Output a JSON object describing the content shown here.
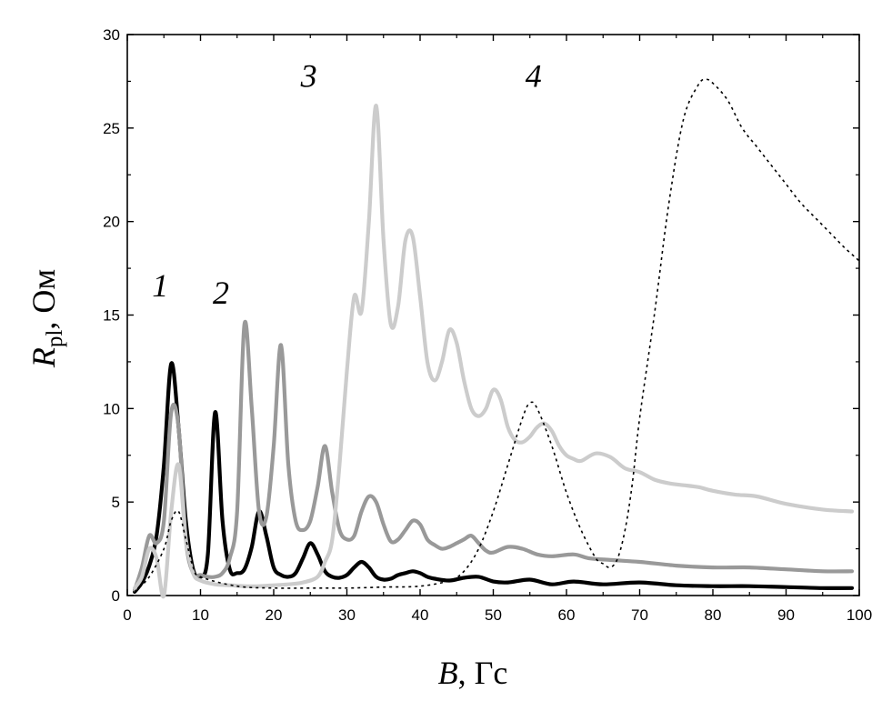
{
  "chart_data": {
    "type": "line",
    "xlabel": {
      "var": "B",
      "unit": ", Гс"
    },
    "ylabel": {
      "var": "R",
      "sub": "pl",
      "unit": ", Ом"
    },
    "xlim": [
      0,
      100
    ],
    "ylim": [
      0,
      30
    ],
    "xticks": [
      0,
      10,
      20,
      30,
      40,
      50,
      60,
      70,
      80,
      90,
      100
    ],
    "yticks": [
      0,
      5,
      10,
      15,
      20,
      25,
      30
    ],
    "grid": false,
    "legend": "none",
    "series": [
      {
        "label": "1",
        "label_at": [
          4.5,
          16
        ],
        "color": "#000000",
        "style": "solid",
        "x": [
          1,
          2,
          3,
          4,
          5,
          6,
          7,
          8,
          9,
          10,
          11,
          12,
          13,
          14,
          15,
          16,
          17,
          18,
          19,
          20,
          21,
          22,
          23,
          24,
          25,
          26,
          27,
          28,
          29,
          30,
          31,
          32,
          33,
          34,
          35,
          36,
          37,
          38,
          39,
          40,
          41,
          42,
          44,
          46,
          48,
          50,
          52,
          55,
          58,
          61,
          65,
          70,
          75,
          80,
          85,
          90,
          95,
          99
        ],
        "y": [
          0.2,
          0.7,
          1.6,
          3.2,
          7.0,
          12.4,
          9.0,
          4.0,
          1.4,
          1.0,
          2.2,
          9.8,
          4.0,
          1.4,
          1.2,
          1.4,
          2.6,
          4.5,
          3.2,
          1.5,
          1.1,
          1.0,
          1.2,
          2.0,
          2.8,
          2.2,
          1.3,
          1.0,
          0.95,
          1.1,
          1.5,
          1.8,
          1.5,
          1.0,
          0.85,
          0.9,
          1.1,
          1.2,
          1.3,
          1.2,
          1.0,
          0.9,
          0.8,
          0.95,
          1.0,
          0.75,
          0.7,
          0.85,
          0.6,
          0.75,
          0.6,
          0.7,
          0.55,
          0.5,
          0.5,
          0.45,
          0.4,
          0.4
        ]
      },
      {
        "label": "2",
        "label_at": [
          12.8,
          15.6
        ],
        "color": "#999999",
        "style": "solid",
        "x": [
          1,
          2,
          3,
          4,
          5,
          6,
          7,
          8,
          9,
          10,
          11,
          12,
          13,
          14,
          15,
          16,
          17,
          18,
          19,
          20,
          21,
          22,
          23,
          24,
          25,
          26,
          27,
          28,
          29,
          30,
          31,
          32,
          33,
          34,
          35,
          36,
          37,
          38,
          39,
          40,
          41,
          42,
          43,
          44,
          45,
          46,
          47,
          48,
          49,
          50,
          52,
          54,
          56,
          58,
          61,
          63,
          66,
          70,
          75,
          80,
          85,
          90,
          95,
          99
        ],
        "y": [
          0.3,
          1.5,
          3.2,
          2.8,
          4.0,
          9.8,
          9.0,
          3.0,
          1.2,
          1.1,
          1.0,
          1.0,
          1.2,
          2.0,
          4.5,
          14.5,
          10.0,
          4.5,
          4.2,
          8.0,
          13.4,
          7.0,
          4.0,
          3.5,
          4.0,
          5.8,
          8.0,
          5.5,
          3.5,
          3.0,
          3.2,
          4.5,
          5.3,
          5.0,
          3.8,
          2.9,
          3.0,
          3.5,
          4.0,
          3.8,
          3.0,
          2.7,
          2.5,
          2.6,
          2.8,
          3.0,
          3.2,
          2.8,
          2.4,
          2.3,
          2.6,
          2.5,
          2.2,
          2.1,
          2.2,
          2.0,
          1.9,
          1.8,
          1.6,
          1.5,
          1.5,
          1.4,
          1.3,
          1.3
        ]
      },
      {
        "label": "3",
        "label_at": [
          24.8,
          27.2
        ],
        "color": "#cccccc",
        "style": "solid",
        "x": [
          1,
          2,
          3,
          4,
          5,
          6,
          7,
          8,
          9,
          10,
          12,
          14,
          16,
          18,
          20,
          22,
          24,
          26,
          27,
          28,
          29,
          30,
          31,
          32,
          33,
          34,
          35,
          36,
          37,
          38,
          39,
          40,
          41,
          42,
          43,
          44,
          45,
          46,
          47,
          48,
          49,
          50,
          51,
          52,
          53,
          54,
          55,
          56,
          57,
          58,
          59,
          60,
          61,
          62,
          64,
          66,
          68,
          70,
          72,
          74,
          76,
          78,
          80,
          83,
          86,
          90,
          95,
          99
        ],
        "y": [
          0.4,
          1.0,
          2.5,
          2.0,
          0.0,
          4.5,
          7.0,
          3.0,
          1.2,
          0.8,
          0.6,
          0.55,
          0.5,
          0.5,
          0.55,
          0.6,
          0.7,
          1.0,
          1.8,
          3.0,
          7.0,
          12.0,
          16.0,
          15.2,
          20.0,
          26.2,
          19.0,
          14.5,
          15.5,
          19.0,
          19.2,
          16.0,
          12.5,
          11.5,
          12.5,
          14.2,
          13.5,
          11.5,
          10.0,
          9.6,
          10.0,
          11.0,
          10.5,
          9.0,
          8.3,
          8.2,
          8.5,
          9.0,
          9.2,
          8.8,
          8.0,
          7.5,
          7.3,
          7.2,
          7.6,
          7.4,
          6.8,
          6.6,
          6.2,
          6.0,
          5.9,
          5.8,
          5.6,
          5.4,
          5.3,
          4.9,
          4.6,
          4.5
        ]
      },
      {
        "label": "4",
        "label_at": [
          55.5,
          27.2
        ],
        "color": "#000000",
        "style": "dotted",
        "x": [
          1,
          3,
          5,
          6,
          7,
          8,
          9,
          10,
          15,
          20,
          25,
          30,
          35,
          40,
          44,
          46,
          48,
          50,
          52,
          54,
          55,
          56,
          58,
          60,
          62,
          64,
          65,
          66,
          67,
          68,
          69,
          70,
          72,
          74,
          76,
          78,
          79,
          80,
          82,
          84,
          86,
          88,
          90,
          92,
          94,
          96,
          98,
          100
        ],
        "y": [
          0.2,
          1.0,
          2.5,
          4.0,
          4.5,
          3.0,
          1.5,
          1.0,
          0.5,
          0.4,
          0.4,
          0.4,
          0.45,
          0.5,
          0.8,
          1.3,
          2.5,
          4.5,
          7.0,
          9.5,
          10.3,
          10.0,
          8.0,
          5.5,
          3.5,
          2.0,
          1.7,
          1.5,
          2.0,
          3.5,
          6.0,
          9.5,
          15.0,
          21.0,
          25.5,
          27.3,
          27.6,
          27.4,
          26.5,
          25.0,
          24.0,
          23.0,
          22.0,
          21.0,
          20.2,
          19.4,
          18.6,
          17.9
        ]
      }
    ]
  }
}
